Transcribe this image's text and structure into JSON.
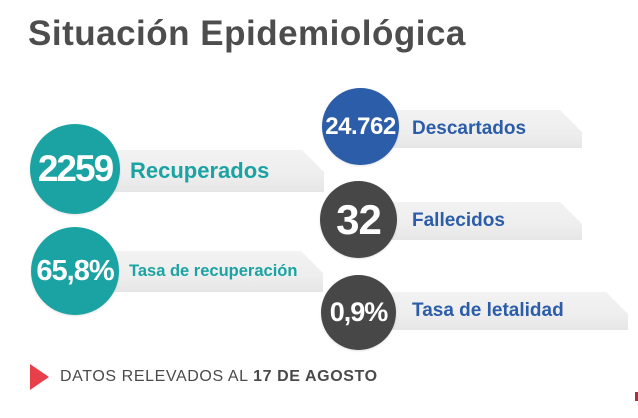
{
  "title": "Situación Epidemiológica",
  "stats": [
    {
      "value": "2259",
      "label": "Recuperados"
    },
    {
      "value": "65,8%",
      "label": "Tasa de recuperación"
    },
    {
      "value": "24.762",
      "label": "Descartados"
    },
    {
      "value": "32",
      "label": "Fallecidos"
    },
    {
      "value": "0,9%",
      "label": "Tasa de letalidad"
    }
  ],
  "footer": {
    "prefix": "DATOS RELEVADOS AL",
    "date": "17 DE AGOSTO"
  },
  "colors": {
    "teal": "#1BA3A3",
    "blue": "#2C5DA8",
    "dark_gray": "#474747",
    "bar_gray": "#EFEFEF",
    "title_gray": "#4D4D4D",
    "accent_red": "#E8404A"
  },
  "icons": {
    "footer_marker": "red-play-triangle"
  },
  "chart_data": {
    "type": "table",
    "title": "Situación Epidemiológica",
    "categories": [
      "Recuperados",
      "Tasa de recuperación",
      "Descartados",
      "Fallecidos",
      "Tasa de letalidad"
    ],
    "values": [
      "2259",
      "65,8%",
      "24.762",
      "32",
      "0,9%"
    ],
    "values_numeric": [
      2259,
      65.8,
      24762,
      32,
      0.9
    ],
    "annotations": [
      "DATOS RELEVADOS AL 17 DE AGOSTO"
    ]
  }
}
